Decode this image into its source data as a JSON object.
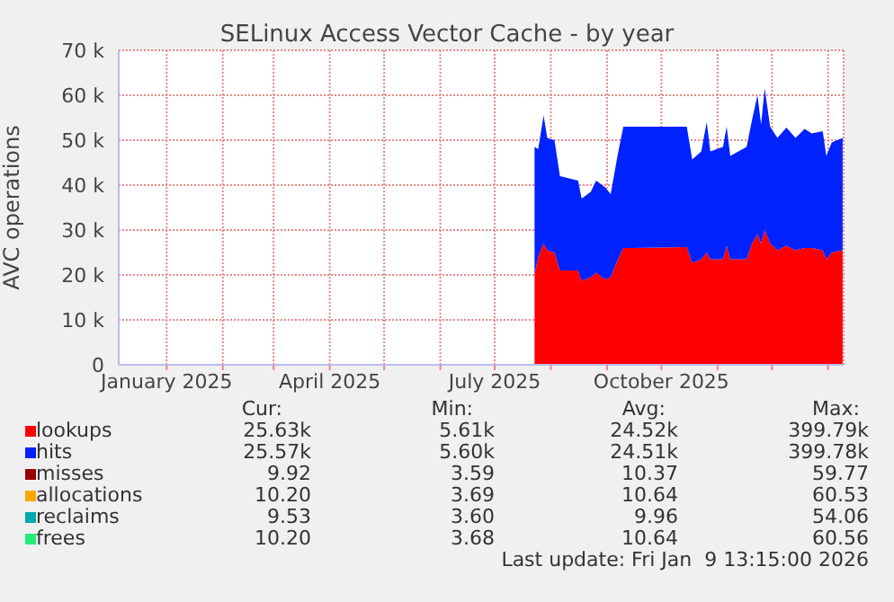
{
  "chart_data": {
    "type": "area",
    "title": "SELinux Access Vector Cache - by year",
    "ylabel": "AVC operations",
    "stacked": true,
    "grid": true,
    "legend": "bottom",
    "x": [
      "2025-07-23",
      "2025-07-25",
      "2025-07-28",
      "2025-07-30",
      "2025-08-03",
      "2025-08-06",
      "2025-08-16",
      "2025-08-18",
      "2025-08-23",
      "2025-08-26",
      "2025-08-31",
      "2025-09-03",
      "2025-09-07",
      "2025-09-10",
      "2025-09-15",
      "2025-10-15",
      "2025-10-18",
      "2025-10-23",
      "2025-10-26",
      "2025-10-28",
      "2025-11-04",
      "2025-11-06",
      "2025-11-08",
      "2025-11-17",
      "2025-11-20",
      "2025-11-23",
      "2025-11-25",
      "2025-11-27",
      "2025-11-30",
      "2025-12-04",
      "2025-12-09",
      "2025-12-14",
      "2025-12-19",
      "2025-12-23",
      "2025-12-29",
      "2025-12-31",
      "2026-01-03",
      "2026-01-09"
    ],
    "xlim": [
      "2024-12-05T13:15",
      "2026-01-09T13:15"
    ],
    "xticks": [
      {
        "value": "2025-01-01",
        "label": "January 2025"
      },
      {
        "value": "2025-02-01",
        "label": null
      },
      {
        "value": "2025-03-01",
        "label": null
      },
      {
        "value": "2025-04-01",
        "label": "April 2025"
      },
      {
        "value": "2025-05-01",
        "label": null
      },
      {
        "value": "2025-06-01",
        "label": null
      },
      {
        "value": "2025-07-01",
        "label": "July 2025"
      },
      {
        "value": "2025-08-01",
        "label": null
      },
      {
        "value": "2025-09-01",
        "label": null
      },
      {
        "value": "2025-10-01",
        "label": "October 2025"
      },
      {
        "value": "2025-11-01",
        "label": null
      },
      {
        "value": "2025-12-01",
        "label": null
      },
      {
        "value": "2026-01-01",
        "label": null
      }
    ],
    "ylim": [
      0,
      70000
    ],
    "yticks": [
      0,
      {
        "value": 10000,
        "label": "10 k"
      },
      {
        "value": 20000,
        "label": "20 k"
      },
      {
        "value": 30000,
        "label": "30 k"
      },
      {
        "value": 40000,
        "label": "40 k"
      },
      {
        "value": 50000,
        "label": "50 k"
      },
      {
        "value": 60000,
        "label": "60 k"
      },
      {
        "value": 70000,
        "label": "70 k"
      }
    ],
    "series": [
      {
        "name": "lookups",
        "color": "#ff0000",
        "values": [
          20000,
          24000,
          27000,
          25500,
          25000,
          21000,
          21000,
          18700,
          19500,
          20500,
          19000,
          19500,
          23500,
          26000,
          26000,
          26200,
          22700,
          23500,
          25000,
          23500,
          23500,
          26500,
          23500,
          23500,
          27000,
          29000,
          27000,
          30000,
          27000,
          25500,
          26500,
          25500,
          26000,
          26000,
          25500,
          23500,
          25000,
          25500
        ]
      },
      {
        "name": "hits",
        "color": "#0022ff",
        "values": [
          28500,
          24000,
          28500,
          25000,
          25000,
          21000,
          20000,
          18300,
          19000,
          20500,
          20500,
          18500,
          23500,
          27000,
          27000,
          26800,
          23000,
          24000,
          29000,
          24000,
          25000,
          26500,
          23000,
          25000,
          27500,
          31000,
          26500,
          31500,
          26000,
          25000,
          26300,
          25000,
          26500,
          25500,
          26500,
          23000,
          24500,
          25000
        ]
      },
      {
        "name": "misses",
        "color": "#990000",
        "values": [
          null,
          null,
          null,
          null,
          null,
          null,
          null,
          null,
          null,
          null,
          null,
          null,
          null,
          null,
          null,
          null,
          null,
          null,
          null,
          null,
          null,
          null,
          null,
          null,
          null,
          null,
          null,
          null,
          null,
          null,
          null,
          null,
          null,
          null,
          null,
          null,
          null,
          null
        ]
      },
      {
        "name": "allocations",
        "color": "#ffa500",
        "values": [
          null,
          null,
          null,
          null,
          null,
          null,
          null,
          null,
          null,
          null,
          null,
          null,
          null,
          null,
          null,
          null,
          null,
          null,
          null,
          null,
          null,
          null,
          null,
          null,
          null,
          null,
          null,
          null,
          null,
          null,
          null,
          null,
          null,
          null,
          null,
          null,
          null,
          null
        ]
      },
      {
        "name": "reclaims",
        "color": "#00aaaa",
        "values": [
          null,
          null,
          null,
          null,
          null,
          null,
          null,
          null,
          null,
          null,
          null,
          null,
          null,
          null,
          null,
          null,
          null,
          null,
          null,
          null,
          null,
          null,
          null,
          null,
          null,
          null,
          null,
          null,
          null,
          null,
          null,
          null,
          null,
          null,
          null,
          null,
          null,
          null
        ]
      },
      {
        "name": "frees",
        "color": "#22ee77",
        "values": [
          null,
          null,
          null,
          null,
          null,
          null,
          null,
          null,
          null,
          null,
          null,
          null,
          null,
          null,
          null,
          null,
          null,
          null,
          null,
          null,
          null,
          null,
          null,
          null,
          null,
          null,
          null,
          null,
          null,
          null,
          null,
          null,
          null,
          null,
          null,
          null,
          null,
          null
        ]
      }
    ],
    "annotations": [
      "Cur:",
      "Min:",
      "Avg:",
      "Max:",
      "25.63k",
      "5.61k",
      "24.52k",
      "399.79k",
      "25.57k",
      "5.60k",
      "24.51k",
      "399.78k",
      "9.92",
      "3.59",
      "10.37",
      "59.77",
      "10.20",
      "3.69",
      "10.64",
      "60.53",
      "9.53",
      "3.60",
      "9.96",
      "54.06",
      "10.20",
      "3.68",
      "10.64",
      "60.56",
      "Last update: Fri Jan  9 13:15:00 2026"
    ]
  }
}
